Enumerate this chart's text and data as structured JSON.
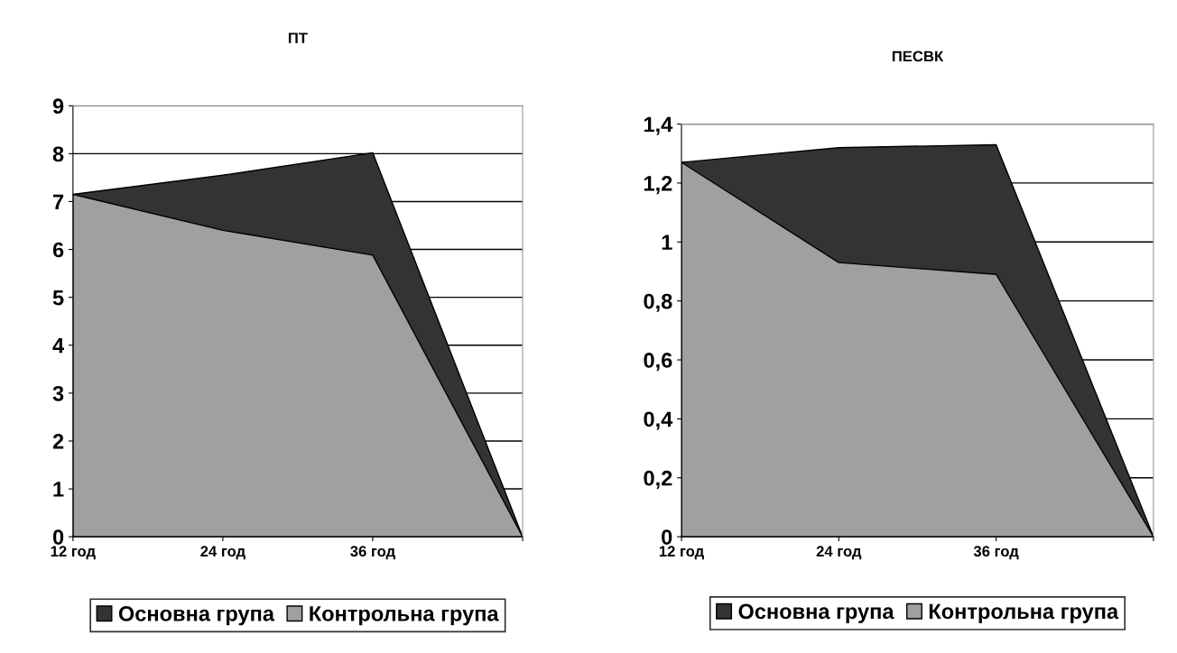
{
  "chart_data": [
    {
      "type": "area",
      "title": "ПТ",
      "categories": [
        "12 год",
        "24 год",
        "36 год",
        null
      ],
      "ylim": [
        0,
        9
      ],
      "yticks": [
        0,
        1,
        2,
        3,
        4,
        5,
        6,
        7,
        8,
        9
      ],
      "grid": "y",
      "legend": "bottom",
      "series": [
        {
          "name": "Основна група",
          "color": "#333333",
          "values": [
            7.15,
            7.55,
            8.02,
            0
          ]
        },
        {
          "name": "Контрольна група",
          "color": "#a0a0a0",
          "values": [
            7.15,
            6.4,
            5.88,
            0
          ]
        }
      ]
    },
    {
      "type": "area",
      "title": "ПЕСВК",
      "categories": [
        "12 год",
        "24 год",
        "36 год",
        null
      ],
      "ylim": [
        0,
        1.4
      ],
      "yticks": [
        0,
        {
          "value": 0.2,
          "label": "0,2"
        },
        {
          "value": 0.4,
          "label": "0,4"
        },
        {
          "value": 0.6,
          "label": "0,6"
        },
        {
          "value": 0.8,
          "label": "0,8"
        },
        1,
        {
          "value": 1.2,
          "label": "1,2"
        },
        {
          "value": 1.4,
          "label": "1,4"
        }
      ],
      "grid": "y",
      "legend": "bottom",
      "series": [
        {
          "name": "Основна група",
          "color": "#333333",
          "values": [
            1.27,
            1.32,
            1.33,
            0
          ]
        },
        {
          "name": "Контрольна група",
          "color": "#a0a0a0",
          "values": [
            1.27,
            0.93,
            0.89,
            0
          ]
        }
      ]
    }
  ]
}
